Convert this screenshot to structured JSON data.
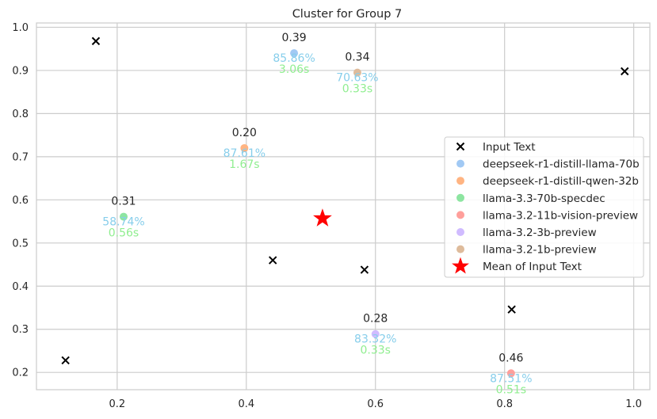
{
  "chart_data": {
    "type": "scatter",
    "title": "Cluster for Group 7",
    "xlabel": "",
    "ylabel": "",
    "xlim": [
      0.075,
      1.025
    ],
    "ylim": [
      0.16,
      1.01
    ],
    "xticks": [
      0.2,
      0.4,
      0.6,
      0.8,
      1.0
    ],
    "xtick_labels": [
      "0.2",
      "0.4",
      "0.6",
      "0.8",
      "1.0"
    ],
    "yticks": [
      0.2,
      0.3,
      0.4,
      0.5,
      0.6,
      0.7,
      0.8,
      0.9,
      1.0
    ],
    "ytick_labels": [
      "0.2",
      "0.3",
      "0.4",
      "0.5",
      "0.6",
      "0.7",
      "0.8",
      "0.9",
      "1.0"
    ],
    "grid": true,
    "legend_position": "center-right",
    "input_text": {
      "name": "Input Text",
      "color": "#000000",
      "points": [
        {
          "x": 0.167,
          "y": 0.968
        },
        {
          "x": 0.986,
          "y": 0.898
        },
        {
          "x": 0.441,
          "y": 0.46
        },
        {
          "x": 0.583,
          "y": 0.438
        },
        {
          "x": 0.811,
          "y": 0.346
        },
        {
          "x": 0.12,
          "y": 0.228
        }
      ]
    },
    "models": [
      {
        "name": "deepseek-r1-distill-llama-70b",
        "color": "#a1c9f4",
        "x": 0.474,
        "y": 0.94,
        "score": "0.39",
        "accuracy": "85.86%",
        "time": "3.06s"
      },
      {
        "name": "deepseek-r1-distill-qwen-32b",
        "color": "#ffb482",
        "x": 0.397,
        "y": 0.72,
        "score": "0.20",
        "accuracy": "87.61%",
        "time": "1.67s"
      },
      {
        "name": "llama-3.3-70b-specdec",
        "color": "#8de5a1",
        "x": 0.21,
        "y": 0.561,
        "score": "0.31",
        "accuracy": "58.74%",
        "time": "0.56s"
      },
      {
        "name": "llama-3.2-11b-vision-preview",
        "color": "#ff9f9b",
        "x": 0.81,
        "y": 0.198,
        "score": "0.46",
        "accuracy": "87.51%",
        "time": "0.51s"
      },
      {
        "name": "llama-3.2-3b-preview",
        "color": "#d0bbff",
        "x": 0.6,
        "y": 0.289,
        "score": "0.28",
        "accuracy": "83.32%",
        "time": "0.33s"
      },
      {
        "name": "llama-3.2-1b-preview",
        "color": "#debb9b",
        "x": 0.572,
        "y": 0.895,
        "score": "0.34",
        "accuracy": "70.63%",
        "time": "0.33s"
      }
    ],
    "mean": {
      "name": "Mean of Input Text",
      "color": "#ff0000",
      "x": 0.518,
      "y": 0.557
    }
  }
}
